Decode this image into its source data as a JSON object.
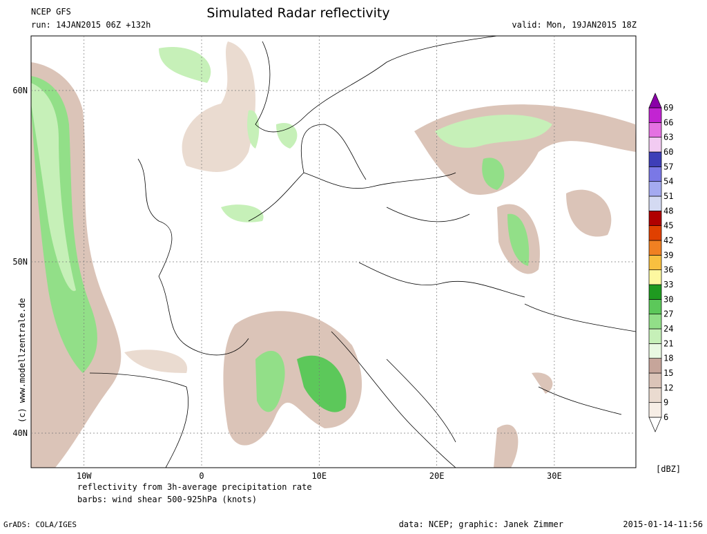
{
  "header": {
    "model": "NCEP GFS",
    "run": "run: 14JAN2015 06Z +132h",
    "title": "Simulated Radar reflectivity",
    "valid": "valid: Mon, 19JAN2015 18Z"
  },
  "map": {
    "lat_ticks": [
      {
        "value": 60,
        "label": "60N"
      },
      {
        "value": 50,
        "label": "50N"
      },
      {
        "value": 40,
        "label": "40N"
      }
    ],
    "lon_ticks": [
      {
        "value": -10,
        "label": "10W"
      },
      0,
      {
        "value": 10,
        "label": "10E"
      },
      {
        "value": 20,
        "label": "20E"
      },
      {
        "value": 30,
        "label": "30E"
      }
    ]
  },
  "colorbar": {
    "unit": "[dBZ]",
    "levels": [
      6,
      9,
      12,
      15,
      18,
      21,
      24,
      27,
      30,
      33,
      36,
      39,
      42,
      45,
      48,
      51,
      54,
      57,
      60,
      63,
      66,
      69
    ],
    "colors": [
      "#ffffff",
      "#f7eee6",
      "#eadbd0",
      "#dbc4b8",
      "#c6a59a",
      "#e9f9e2",
      "#c6f0b8",
      "#92df88",
      "#5cc85a",
      "#1f9a20",
      "#fdf8a0",
      "#f8c040",
      "#f08022",
      "#e04000",
      "#b00000",
      "#d4daf2",
      "#a4aaf0",
      "#7a78e6",
      "#3e3eb8",
      "#f2cbf2",
      "#e472e2",
      "#c224d2",
      "#8a00a8"
    ]
  },
  "footer": {
    "desc1": "reflectivity from 3h-average precipitation rate",
    "desc2": "barbs: wind shear 500-925hPa (knots)",
    "grads": "GrADS: COLA/IGES",
    "credit": "data: NCEP; graphic: Janek Zimmer",
    "stamp": "2015-01-14-11:56",
    "copyright": "(c) www.modellzentrale.de"
  }
}
